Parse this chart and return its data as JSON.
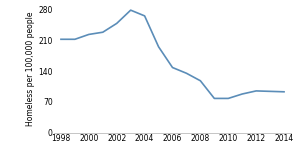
{
  "years": [
    1998,
    1999,
    2000,
    2001,
    2002,
    2003,
    2004,
    2005,
    2006,
    2007,
    2008,
    2009,
    2010,
    2011,
    2012,
    2013,
    2014
  ],
  "values": [
    212,
    212,
    223,
    228,
    248,
    278,
    265,
    195,
    148,
    135,
    118,
    78,
    78,
    88,
    95,
    94,
    93
  ],
  "line_color": "#5b8db8",
  "line_width": 1.2,
  "ylabel": "Homeless per 100,000 people",
  "ylabel_fontsize": 5.5,
  "tick_fontsize": 5.5,
  "ylim": [
    0,
    290
  ],
  "yticks": [
    0,
    70,
    140,
    210,
    280
  ],
  "xticks": [
    1998,
    2000,
    2002,
    2004,
    2006,
    2008,
    2010,
    2012,
    2014
  ],
  "spine_color": "#bbbbbb",
  "background_color": "#ffffff"
}
